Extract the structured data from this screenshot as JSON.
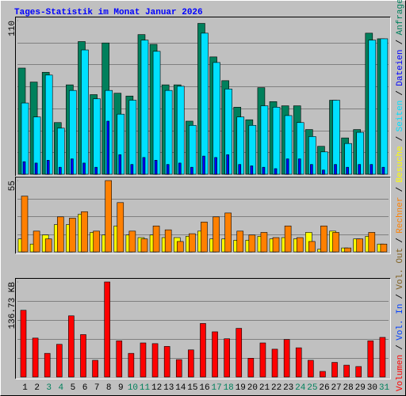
{
  "chart_data": {
    "type": "bar",
    "title": "Tages-Statistik im Monat Januar 2026",
    "title_color": "#0000FF",
    "categories": [
      "1",
      "2",
      "3",
      "4",
      "5",
      "6",
      "7",
      "8",
      "9",
      "10",
      "11",
      "12",
      "13",
      "14",
      "15",
      "16",
      "17",
      "18",
      "19",
      "20",
      "21",
      "22",
      "23",
      "24",
      "25",
      "26",
      "27",
      "28",
      "29",
      "30",
      "31"
    ],
    "category_colors": [
      "#000000",
      "#000000",
      "#00805C",
      "#00805C",
      "#000000",
      "#000000",
      "#000000",
      "#000000",
      "#000000",
      "#00805C",
      "#00805C",
      "#000000",
      "#000000",
      "#000000",
      "#000000",
      "#000000",
      "#00805C",
      "#00805C",
      "#000000",
      "#000000",
      "#000000",
      "#000000",
      "#000000",
      "#00805C",
      "#00805C",
      "#000000",
      "#000000",
      "#000000",
      "#000000",
      "#000000",
      "#00805C"
    ],
    "legend_separator": "/",
    "panels": [
      {
        "ylim": [
          0,
          110
        ],
        "yticks": [
          110
        ],
        "series": [
          {
            "name": "Anfragen",
            "color": "#00805C",
            "values": [
              76,
              66,
              73,
              37,
              64,
              95,
              57,
              94,
              58,
              56,
              100,
              93,
              64,
              64,
              38,
              108,
              84,
              67,
              48,
              39,
              62,
              52,
              49,
              49,
              32,
              20,
              53,
              26,
              32,
              101,
              97
            ]
          },
          {
            "name": "Dateien",
            "color": "#0000FF",
            "values": [
              9,
              8,
              10,
              5,
              11,
              8,
              5,
              38,
              14,
              7,
              12,
              10,
              7,
              8,
              5,
              13,
              12,
              14,
              7,
              6,
              5,
              4,
              11,
              11,
              7,
              3,
              7,
              5,
              7,
              7,
              5
            ]
          },
          {
            "name": "Seiten",
            "color": "#00E0FF",
            "values": [
              51,
              41,
              71,
              33,
              60,
              89,
              54,
              60,
              43,
              53,
              96,
              88,
              60,
              63,
              35,
              101,
              80,
              61,
              41,
              35,
              49,
              48,
              42,
              37,
              27,
              16,
              53,
              22,
              30,
              96,
              97
            ]
          }
        ]
      },
      {
        "ylim": [
          0,
          55
        ],
        "yticks": [
          55
        ],
        "series": [
          {
            "name": "Besuche",
            "color": "#FFFF00",
            "values": [
              10,
              6,
              13,
              21,
              21,
              29,
              15,
              13,
              20,
              13,
              11,
              13,
              11,
              11,
              12,
              16,
              10,
              10,
              9,
              9,
              12,
              10,
              11,
              10,
              15,
              2,
              16,
              3,
              10,
              12,
              6
            ]
          },
          {
            "name": "Rechner",
            "color": "#FF8000",
            "values": [
              43,
              16,
              10,
              27,
              26,
              31,
              16,
              55,
              38,
              16,
              10,
              20,
              17,
              8,
              14,
              23,
              27,
              30,
              16,
              13,
              15,
              11,
              20,
              11,
              8,
              20,
              15,
              3,
              10,
              15,
              6
            ]
          }
        ]
      },
      {
        "ylim": [
          0,
          136.73
        ],
        "yticks": [
          {
            "value": 136.73,
            "label": "136.73 KB"
          }
        ],
        "series": [
          {
            "name": "Vol. Out",
            "color": "#806020",
            "values": [
              null,
              null,
              null,
              null,
              null,
              null,
              null,
              null,
              null,
              null,
              null,
              null,
              null,
              null,
              null,
              null,
              null,
              null,
              null,
              null,
              null,
              null,
              null,
              null,
              null,
              null,
              null,
              null,
              null,
              null,
              null
            ]
          },
          {
            "name": "Vol. In",
            "color": "#0040FF",
            "values": [
              null,
              null,
              null,
              null,
              null,
              null,
              null,
              null,
              null,
              null,
              null,
              null,
              null,
              null,
              null,
              null,
              null,
              null,
              null,
              null,
              null,
              null,
              null,
              null,
              null,
              null,
              null,
              null,
              null,
              null,
              null
            ]
          },
          {
            "name": "Volumen",
            "color": "#FF0000",
            "values": [
              96,
              56,
              34,
              47,
              88,
              61,
              24,
              136.73,
              52,
              34,
              49,
              48,
              44,
              25,
              39,
              77,
              65,
              55,
              70,
              27,
              49,
              40,
              54,
              42,
              24,
              8,
              21,
              17,
              15,
              52,
              57
            ]
          }
        ]
      }
    ]
  }
}
